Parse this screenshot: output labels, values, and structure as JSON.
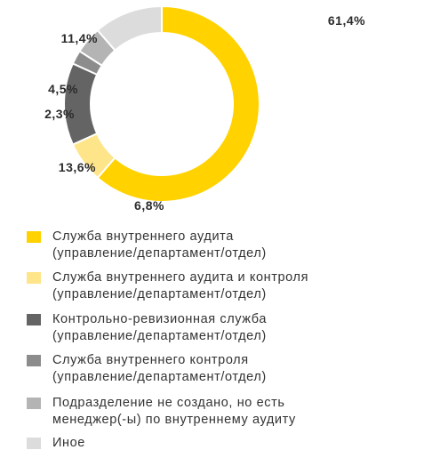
{
  "chart_data": {
    "type": "pie",
    "title": "",
    "series": [
      {
        "name": "Служба внутреннего аудита (управление/департамент/отдел)",
        "value": 61.4,
        "label": "61,4%",
        "color": "#ffd200"
      },
      {
        "name": "Служба внутреннего аудита и контроля (управление/департамент/отдел)",
        "value": 6.8,
        "label": "6,8%",
        "color": "#ffe58a"
      },
      {
        "name": "Контрольно-ревизионная служба (управление/департамент/отдел)",
        "value": 13.6,
        "label": "13,6%",
        "color": "#646464"
      },
      {
        "name": "Служба внутреннего контроля (управление/департамент/отдел)",
        "value": 2.3,
        "label": "2,3%",
        "color": "#8c8c8c"
      },
      {
        "name": "Подразделение не создано, но есть менеджер(-ы) по внутреннему аудиту",
        "value": 4.5,
        "label": "4,5%",
        "color": "#b4b4b4"
      },
      {
        "name": "Иное",
        "value": 11.4,
        "label": "11,4%",
        "color": "#dcdcdc"
      }
    ],
    "donut": true,
    "legend_position": "bottom"
  },
  "legend": {
    "items": [
      {
        "lines": [
          "Служба внутреннего аудита",
          "(управление/департамент/отдел)"
        ]
      },
      {
        "lines": [
          "Служба внутреннего аудита и контроля",
          "(управление/департамент/отдел)"
        ]
      },
      {
        "lines": [
          "Контрольно-ревизионная служба",
          "(управление/департамент/отдел)"
        ]
      },
      {
        "lines": [
          "Служба внутреннего контроля",
          "(управление/департамент/отдел)"
        ]
      },
      {
        "lines": [
          "Подразделение не создано, но есть",
          "менеджер(-ы) по внутреннему аудиту"
        ]
      },
      {
        "lines": [
          "Иное"
        ]
      }
    ]
  }
}
